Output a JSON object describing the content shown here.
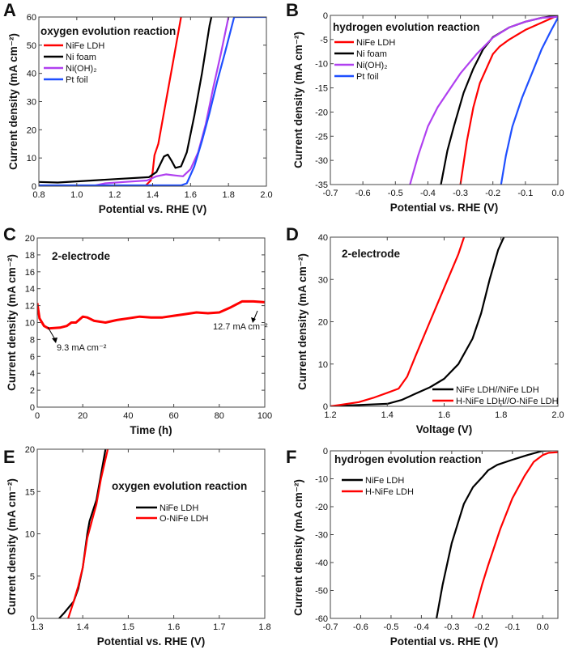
{
  "chart_data": [
    {
      "panel": "A",
      "type": "line",
      "title": "oxygen evolution reaction",
      "xlabel": "Potential vs. RHE (V)",
      "ylabel": "Current density (mA cm⁻²)",
      "xlim": [
        0.8,
        2.0
      ],
      "ylim": [
        0,
        60
      ],
      "xticks": [
        "0.8",
        "1.0",
        "1.2",
        "1.4",
        "1.6",
        "1.8",
        "2.0"
      ],
      "xtick_values": [
        0.8,
        1.0,
        1.2,
        1.4,
        1.6,
        1.8,
        2.0
      ],
      "yticks": [
        "0",
        "10",
        "20",
        "30",
        "40",
        "50",
        "60"
      ],
      "ytick_values": [
        0,
        10,
        20,
        30,
        40,
        50,
        60
      ],
      "legend_placement": "top-left",
      "series": [
        {
          "name": "NiFe LDH",
          "color": "#ff0000",
          "x": [
            1.36,
            1.39,
            1.4,
            1.41,
            1.43,
            1.47,
            1.51,
            1.55
          ],
          "y": [
            0,
            2,
            5,
            11,
            15,
            30,
            45,
            60
          ]
        },
        {
          "name": "Ni foam",
          "color": "#000000",
          "x": [
            0.8,
            0.9,
            1.0,
            1.2,
            1.38,
            1.42,
            1.46,
            1.48,
            1.5,
            1.52,
            1.55,
            1.58,
            1.62,
            1.66,
            1.7,
            1.71
          ],
          "y": [
            1.5,
            1.3,
            1.7,
            2.5,
            3.2,
            5,
            10.5,
            11.2,
            9,
            6.5,
            7,
            12,
            25,
            40,
            57,
            60
          ]
        },
        {
          "name": "Ni(OH)₂",
          "color": "#b040f0",
          "x": [
            1.08,
            1.15,
            1.25,
            1.37,
            1.42,
            1.47,
            1.52,
            1.56,
            1.6,
            1.64,
            1.68,
            1.72,
            1.76,
            1.8
          ],
          "y": [
            0,
            1,
            1.5,
            2,
            3.5,
            4.2,
            3.8,
            3.5,
            6,
            12,
            22,
            35,
            47,
            60
          ]
        },
        {
          "name": "Pt foil",
          "color": "#1f4fff",
          "x": [
            0.8,
            1.55,
            1.58,
            1.62,
            1.66,
            1.7,
            1.74,
            1.78,
            1.83,
            2.0
          ],
          "y": [
            0.3,
            0.3,
            1,
            7,
            16,
            26,
            37,
            47,
            60,
            60
          ]
        }
      ]
    },
    {
      "panel": "B",
      "type": "line",
      "title": "hydrogen evolution reaction",
      "xlabel": "Potential vs. RHE (V)",
      "ylabel": "Current density (mA cm⁻²)",
      "xlim": [
        -0.7,
        0.0
      ],
      "ylim": [
        -35,
        0
      ],
      "xticks": [
        "-0.7",
        "-0.6",
        "-0.5",
        "-0.4",
        "-0.3",
        "-0.2",
        "-0.1",
        "0.0"
      ],
      "xtick_values": [
        -0.7,
        -0.6,
        -0.5,
        -0.4,
        -0.3,
        -0.2,
        -0.1,
        0.0
      ],
      "yticks": [
        "-35",
        "-30",
        "-25",
        "-20",
        "-15",
        "-10",
        "-5",
        "0"
      ],
      "ytick_values": [
        -35,
        -30,
        -25,
        -20,
        -15,
        -10,
        -5,
        0
      ],
      "legend_placement": "top-left",
      "series": [
        {
          "name": "NiFe LDH",
          "color": "#ff0000",
          "x": [
            0,
            -0.05,
            -0.1,
            -0.15,
            -0.18,
            -0.2,
            -0.22,
            -0.24,
            -0.26,
            -0.28,
            -0.3
          ],
          "y": [
            0,
            -1.5,
            -3,
            -5,
            -6.5,
            -8,
            -11,
            -14,
            -19,
            -26,
            -35
          ]
        },
        {
          "name": "Ni foam",
          "color": "#000000",
          "x": [
            0,
            -0.05,
            -0.1,
            -0.15,
            -0.2,
            -0.23,
            -0.26,
            -0.29,
            -0.32,
            -0.34,
            -0.36
          ],
          "y": [
            0,
            -0.5,
            -1.3,
            -2.5,
            -4.5,
            -7,
            -11,
            -16,
            -23,
            -28,
            -35
          ]
        },
        {
          "name": "Ni(OH)₂",
          "color": "#b040f0",
          "x": [
            0,
            -0.05,
            -0.1,
            -0.15,
            -0.2,
            -0.25,
            -0.3,
            -0.33,
            -0.37,
            -0.4,
            -0.43,
            -0.455
          ],
          "y": [
            -0.3,
            -0.5,
            -1.3,
            -2.5,
            -4.6,
            -8,
            -12,
            -15,
            -19,
            -23,
            -29,
            -35
          ]
        },
        {
          "name": "Pt foil",
          "color": "#1f4fff",
          "x": [
            0,
            -0.02,
            -0.05,
            -0.08,
            -0.11,
            -0.14,
            -0.16,
            -0.175
          ],
          "y": [
            -0.5,
            -3,
            -7,
            -12,
            -17,
            -23,
            -29,
            -35
          ]
        }
      ]
    },
    {
      "panel": "C",
      "type": "line",
      "title": "2-electrode",
      "xlabel": "Time (h)",
      "ylabel": "Current density (mA cm⁻²)",
      "xlim": [
        0,
        100
      ],
      "ylim": [
        0,
        20
      ],
      "xticks": [
        "0",
        "20",
        "40",
        "60",
        "80",
        "100"
      ],
      "xtick_values": [
        0,
        20,
        40,
        60,
        80,
        100
      ],
      "yticks": [
        "0",
        "2",
        "4",
        "6",
        "8",
        "10",
        "12",
        "14",
        "16",
        "18",
        "20"
      ],
      "ytick_values": [
        0,
        2,
        4,
        6,
        8,
        10,
        12,
        14,
        16,
        18,
        20
      ],
      "annotations": [
        "9.3 mA cm⁻²",
        "12.7 mA cm⁻²"
      ],
      "series": [
        {
          "color": "#ff0000",
          "x": [
            0,
            1,
            3,
            5,
            10,
            13,
            15,
            17,
            20,
            22,
            25,
            30,
            35,
            40,
            45,
            50,
            55,
            60,
            65,
            70,
            75,
            80,
            85,
            90,
            95,
            100
          ],
          "y": [
            12.3,
            10.5,
            9.6,
            9.3,
            9.4,
            9.6,
            10,
            10,
            10.7,
            10.6,
            10.2,
            10,
            10.3,
            10.5,
            10.7,
            10.6,
            10.6,
            10.8,
            11,
            11.2,
            11.1,
            11.2,
            11.8,
            12.5,
            12.5,
            12.4
          ]
        }
      ]
    },
    {
      "panel": "D",
      "type": "line",
      "title": "2-electrode",
      "xlabel": "Voltage (V)",
      "ylabel": "Current density (mA cm⁻²)",
      "xlim": [
        1.2,
        2.0
      ],
      "ylim": [
        0,
        40
      ],
      "xticks": [
        "1.2",
        "1.4",
        "1.6",
        "1.8",
        "2.0"
      ],
      "xtick_values": [
        1.2,
        1.4,
        1.6,
        1.8,
        2.0
      ],
      "yticks": [
        "0",
        "10",
        "20",
        "30",
        "40"
      ],
      "ytick_values": [
        0,
        10,
        20,
        30,
        40
      ],
      "legend_placement": "bottom-right",
      "series": [
        {
          "name": "NiFe LDH//NiFe LDH",
          "color": "#000000",
          "x": [
            1.2,
            1.3,
            1.4,
            1.45,
            1.5,
            1.55,
            1.6,
            1.65,
            1.7,
            1.73,
            1.76,
            1.79,
            1.81
          ],
          "y": [
            0,
            0.3,
            0.6,
            1.5,
            3,
            4.5,
            6.5,
            10,
            16,
            22,
            30,
            37,
            40
          ]
        },
        {
          "name": "H-NiFe LDH//O-NiFe LDH",
          "color": "#ff0000",
          "x": [
            1.2,
            1.3,
            1.35,
            1.4,
            1.44,
            1.47,
            1.5,
            1.55,
            1.6,
            1.65,
            1.67
          ],
          "y": [
            0,
            1,
            2,
            3.2,
            4.2,
            7,
            12,
            20,
            28,
            36,
            40
          ]
        }
      ]
    },
    {
      "panel": "E",
      "type": "line",
      "title": "oxygen evolution reaction",
      "xlabel": "Potential vs. RHE (V)",
      "ylabel": "Current density (mA cm⁻²)",
      "xlim": [
        1.3,
        1.8
      ],
      "ylim": [
        0,
        20
      ],
      "xticks": [
        "1.3",
        "1.4",
        "1.5",
        "1.6",
        "1.7",
        "1.8"
      ],
      "xtick_values": [
        1.3,
        1.4,
        1.5,
        1.6,
        1.7,
        1.8
      ],
      "yticks": [
        "0",
        "5",
        "10",
        "15",
        "20"
      ],
      "ytick_values": [
        0,
        5,
        10,
        15,
        20
      ],
      "legend_placement": "center",
      "series": [
        {
          "name": "NiFe LDH",
          "color": "#000000",
          "x": [
            1.348,
            1.36,
            1.38,
            1.39,
            1.4,
            1.41,
            1.415,
            1.43,
            1.44,
            1.45
          ],
          "y": [
            0,
            0.7,
            2,
            3.5,
            6,
            10,
            11.5,
            14,
            17,
            20
          ]
        },
        {
          "name": "O-NiFe LDH",
          "color": "#ff0000",
          "x": [
            1.368,
            1.38,
            1.39,
            1.4,
            1.41,
            1.42,
            1.43,
            1.44,
            1.455
          ],
          "y": [
            0,
            2,
            3.8,
            6,
            9.5,
            11.5,
            13.5,
            16.5,
            20
          ]
        }
      ]
    },
    {
      "panel": "F",
      "type": "line",
      "title": "hydrogen evolution reaction",
      "xlabel": "Potential vs. RHE (V)",
      "ylabel": "Current density (mA cm⁻²)",
      "xlim": [
        -0.7,
        0.05
      ],
      "ylim": [
        -60,
        0
      ],
      "xticks": [
        "-0.7",
        "-0.6",
        "-0.5",
        "-0.4",
        "-0.3",
        "-0.2",
        "-0.1",
        "0.0"
      ],
      "xtick_values": [
        -0.7,
        -0.6,
        -0.5,
        -0.4,
        -0.3,
        -0.2,
        -0.1,
        0.0
      ],
      "yticks": [
        "-60",
        "-50",
        "-40",
        "-30",
        "-20",
        "-10",
        "0"
      ],
      "ytick_values": [
        -60,
        -50,
        -40,
        -30,
        -20,
        -10,
        0
      ],
      "legend_placement": "top-left",
      "series": [
        {
          "name": "NiFe LDH",
          "color": "#000000",
          "x": [
            0.05,
            0.0,
            -0.05,
            -0.1,
            -0.15,
            -0.18,
            -0.2,
            -0.23,
            -0.26,
            -0.3,
            -0.33,
            -0.35
          ],
          "y": [
            0.3,
            0,
            -1.5,
            -3.2,
            -5,
            -7,
            -9.5,
            -13,
            -19,
            -33,
            -48,
            -60
          ]
        },
        {
          "name": "H-NiFe LDH",
          "color": "#ff0000",
          "x": [
            0.05,
            0.02,
            0.0,
            -0.03,
            -0.06,
            -0.1,
            -0.14,
            -0.18,
            -0.2,
            -0.23
          ],
          "y": [
            -0.5,
            -0.7,
            -1.5,
            -4,
            -9,
            -17,
            -28,
            -41,
            -48,
            -60
          ]
        }
      ]
    }
  ]
}
